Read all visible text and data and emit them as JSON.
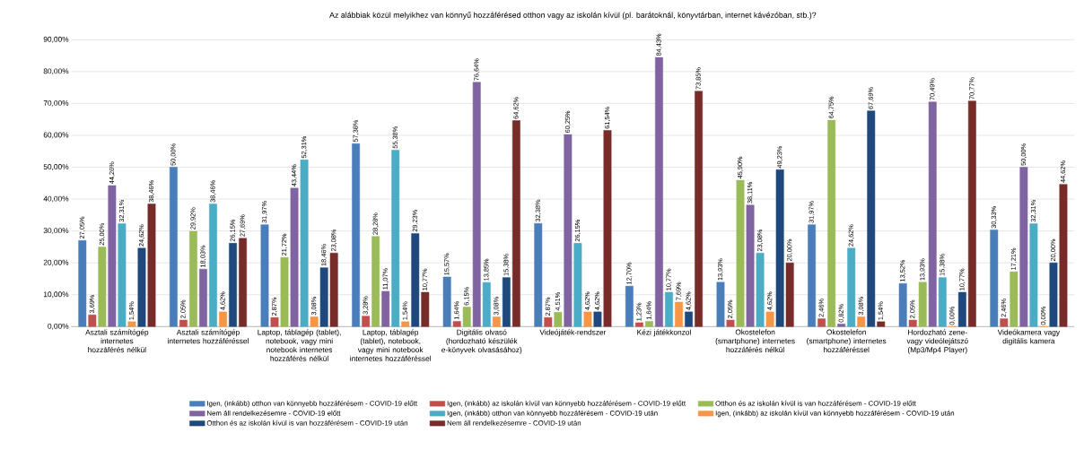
{
  "chart_data": {
    "type": "bar",
    "title": "Az alábbiak közül melyikhez van könnyű hozzáférésed otthon vagy az iskolán kívül (pl. barátoknál, könyvtárban, internet kávézóban, stb.)?",
    "categories": [
      "Asztali számítógép internetes hozzáférés nélkül",
      "Asztali számítógép internetes hozzáféréssel",
      "Laptop, táblagép (tablet), notebook, vagy mini notebook internetes hozzáférés nélkül",
      "Laptop, táblagép (tablet), notebook, vagy mini notebook internetes hozzáféréssel",
      "Digitális olvasó (hordozható készülék e-könyvek olvasásához)",
      "Videójáték-rendszer",
      "Kézi játékkonzol",
      "Okostelefon (smartphone) internetes hozzáférés nélkül",
      "Okostelefon (smartphone) internetes hozzáféréssel",
      "Hordozható zene- vagy videólejátszó (Mp3/Mp4 Player)",
      "Videókamera vagy digitális kamera"
    ],
    "series": [
      {
        "name": "Igen, (inkább) otthon van könnyebb hozzáférésem - COVID-19 előtt",
        "color": "#4a7ebb",
        "values": [
          27.05,
          50.0,
          31.97,
          57.38,
          15.57,
          32.38,
          12.7,
          13.93,
          31.97,
          13.52,
          30.33
        ],
        "value_labels": [
          "27,05%",
          "50,00%",
          "31,97%",
          "57,38%",
          "15,57%",
          "32,38%",
          "12,70%",
          "13,93%",
          "31,97%",
          "13,52%",
          "30,33%"
        ]
      },
      {
        "name": "Igen, (inkább) az iskolán kívül van könnyebb hozzáférésem - COVID-19 előtt",
        "color": "#c0504d",
        "values": [
          3.69,
          2.05,
          2.87,
          3.28,
          1.64,
          2.87,
          1.23,
          2.05,
          2.46,
          2.05,
          2.46
        ],
        "value_labels": [
          "3,69%",
          "2,05%",
          "2,87%",
          "3,28%",
          "1,64%",
          "2,87%",
          "1,23%",
          "2,05%",
          "2,46%",
          "2,05%",
          "2,46%"
        ]
      },
      {
        "name": "Otthon és az iskolán kívül is van hozzáférésem - COVID-19 előtt",
        "color": "#9bbb59",
        "values": [
          25.0,
          29.92,
          21.72,
          28.28,
          6.15,
          4.51,
          1.64,
          45.9,
          64.75,
          13.93,
          17.21
        ],
        "value_labels": [
          "25,00%",
          "29,92%",
          "21,72%",
          "28,28%",
          "6,15%",
          "4,51%",
          "1,64%",
          "45,90%",
          "64,75%",
          "13,93%",
          "17,21%"
        ]
      },
      {
        "name": "Nem áll rendelkezésemre - COVID-19 előtt",
        "color": "#8064a2",
        "values": [
          44.26,
          18.03,
          43.44,
          11.07,
          76.64,
          60.25,
          84.43,
          38.11,
          0.82,
          70.49,
          50.0
        ],
        "value_labels": [
          "44,26%",
          "18,03%",
          "43,44%",
          "11,07%",
          "76,64%",
          "60,25%",
          "84,43%",
          "38,11%",
          "0,82%",
          "70,49%",
          "50,00%"
        ]
      },
      {
        "name": "Igen, (inkább) otthon van könnyebb hozzáférésem - COVID-19 után",
        "color": "#4bacc6",
        "values": [
          32.31,
          38.46,
          52.31,
          55.38,
          13.85,
          26.15,
          10.77,
          23.08,
          24.62,
          15.38,
          32.31
        ],
        "value_labels": [
          "32,31%",
          "38,46%",
          "52,31%",
          "55,38%",
          "13,85%",
          "26,15%",
          "10,77%",
          "23,08%",
          "24,62%",
          "15,38%",
          "32,31%"
        ]
      },
      {
        "name": "Igen, (inkább) az iskolán kívül van könnyebb hozzáférésem - COVID-19 után",
        "color": "#f79646",
        "values": [
          1.54,
          4.62,
          3.08,
          1.54,
          3.08,
          4.62,
          7.69,
          4.62,
          3.08,
          0.0,
          0.0
        ],
        "value_labels": [
          "1,54%",
          "4,62%",
          "3,08%",
          "1,54%",
          "3,08%",
          "4,62%",
          "7,69%",
          "4,62%",
          "3,08%",
          "0,00%",
          "0,00%"
        ]
      },
      {
        "name": "Otthon és az iskolán kívül is van hozzáférésem - COVID-19 után",
        "color": "#1f497d",
        "values": [
          24.62,
          26.15,
          18.46,
          29.23,
          15.38,
          4.62,
          4.62,
          49.23,
          67.69,
          10.77,
          20.0
        ],
        "value_labels": [
          "24,62%",
          "26,15%",
          "18,46%",
          "29,23%",
          "15,38%",
          "4,62%",
          "4,62%",
          "49,23%",
          "67,69%",
          "10,77%",
          "20,00%"
        ]
      },
      {
        "name": "Nem áll rendelkezésemre - COVID-19 után",
        "color": "#772c2a",
        "values": [
          38.46,
          27.69,
          23.08,
          10.77,
          64.62,
          61.54,
          73.85,
          20.0,
          1.54,
          70.77,
          44.62
        ],
        "value_labels": [
          "38,46%",
          "27,69%",
          "23,08%",
          "10,77%",
          "64,62%",
          "61,54%",
          "73,85%",
          "20,00%",
          "1,54%",
          "70,77%",
          "44,62%"
        ]
      }
    ],
    "ylim": [
      0,
      90
    ],
    "yticks": [
      {
        "value": 0,
        "label": "0,00%"
      },
      {
        "value": 10,
        "label": "10,00%"
      },
      {
        "value": 20,
        "label": "20,00%"
      },
      {
        "value": 30,
        "label": "30,00%"
      },
      {
        "value": 40,
        "label": "40,00%"
      },
      {
        "value": 50,
        "label": "50,00%"
      },
      {
        "value": 60,
        "label": "60,00%"
      },
      {
        "value": 70,
        "label": "70,00%"
      },
      {
        "value": 80,
        "label": "80,00%"
      },
      {
        "value": 90,
        "label": "90,00%"
      }
    ],
    "grid": "y",
    "legend": "bottom"
  }
}
